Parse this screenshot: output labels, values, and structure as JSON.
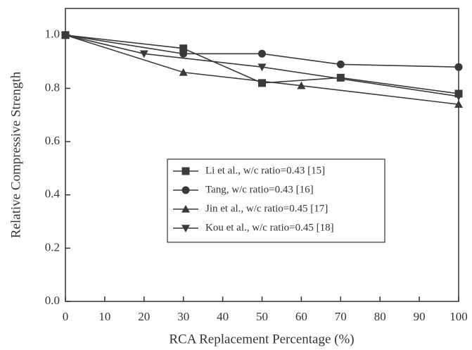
{
  "chart_data": {
    "type": "line",
    "xlabel": "RCA Replacement Percentage (%)",
    "ylabel": "Relative Compressive Strength",
    "xlim": [
      0,
      100
    ],
    "ylim": [
      0,
      1.1
    ],
    "xticks": [
      0,
      10,
      20,
      30,
      40,
      50,
      60,
      70,
      80,
      90,
      100
    ],
    "yticks": [
      {
        "value": 0,
        "label": "0.0"
      },
      0.2,
      0.4,
      0.6,
      0.8,
      {
        "value": 1,
        "label": "1.0"
      }
    ],
    "grid": false,
    "legend": "bottom",
    "series": [
      {
        "name": "Li et al., w/c ratio=0.43 [15]",
        "color": "#3a3a3a",
        "marker": "square",
        "x": [
          0,
          30,
          50,
          70,
          100
        ],
        "values": [
          1.0,
          0.95,
          0.82,
          0.84,
          0.78
        ]
      },
      {
        "name": "Tang, w/c ratio=0.43 [16]",
        "color": "#3a3a3a",
        "marker": "circle",
        "x": [
          0,
          30,
          50,
          70,
          100
        ],
        "values": [
          1.0,
          0.93,
          0.93,
          0.89,
          0.88
        ]
      },
      {
        "name": "Jin et al., w/c ratio=0.45 [17]",
        "color": "#3a3a3a",
        "marker": "triangle-up",
        "x": [
          0,
          30,
          60,
          100
        ],
        "values": [
          1.0,
          0.86,
          0.81,
          0.74
        ]
      },
      {
        "name": "Kou et al., w/c ratio=0.45 [18]",
        "color": "#3a3a3a",
        "marker": "triangle-down",
        "x": [
          0,
          20,
          50,
          100
        ],
        "values": [
          1.0,
          0.93,
          0.88,
          0.77
        ]
      }
    ]
  }
}
